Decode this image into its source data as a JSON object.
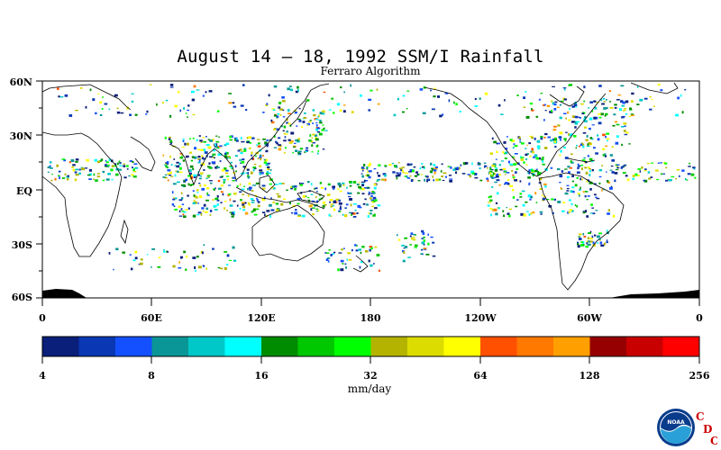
{
  "title": "August 14 – 18, 1992 SSM/I Rainfall",
  "subtitle": "Ferraro Algorithm",
  "lat_labels": [
    "60N",
    "30N",
    "EQ",
    "30S",
    "60S"
  ],
  "lon_labels": [
    "0",
    "60E",
    "120E",
    "180",
    "120W",
    "60W",
    "0"
  ],
  "colorbar": {
    "unit": "mm/day",
    "tick_labels": [
      "4",
      "8",
      "16",
      "32",
      "64",
      "128",
      "256"
    ],
    "colors": [
      "#0a1f7a",
      "#0a37b4",
      "#1450ff",
      "#0a9696",
      "#00c8c8",
      "#00ffff",
      "#008c00",
      "#00c800",
      "#00ff00",
      "#b4b400",
      "#dcdc00",
      "#ffff00",
      "#ff5000",
      "#ff7800",
      "#ffa000",
      "#960000",
      "#c80000",
      "#ff0000"
    ]
  },
  "logo": {
    "letters": [
      "C",
      "D",
      "C"
    ],
    "emblem": "NOAA",
    "letter_color": "#cc0000"
  }
}
